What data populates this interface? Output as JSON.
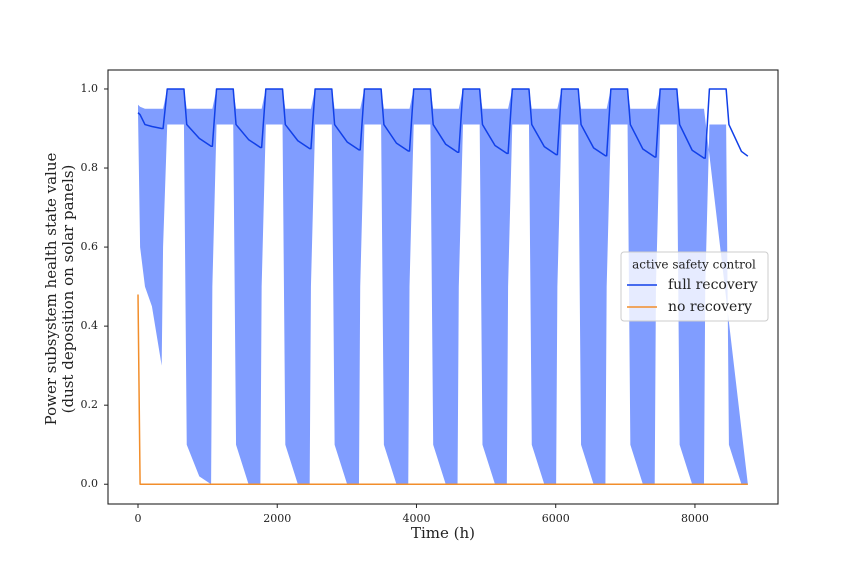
{
  "chart_data": {
    "type": "line",
    "xlabel": "Time (h)",
    "ylabel": [
      "Power subsystem health state value",
      "(dust deposition on solar panels)"
    ],
    "legend_title": "active safety control",
    "legend_loc": "center right",
    "grid": false,
    "xlim": [
      -431,
      9193
    ],
    "ylim": [
      -0.05,
      1.048
    ],
    "xticks": [
      0,
      2000,
      4000,
      6000,
      8000
    ],
    "yticks": [
      {
        "value": 0,
        "label": "0.0"
      },
      0.2,
      0.4,
      0.6,
      0.8,
      {
        "value": 1,
        "label": "1.0"
      }
    ],
    "x": [
      0,
      30,
      100,
      200,
      340,
      360,
      420,
      660,
      700,
      880,
      1050,
      1068,
      1128,
      1368,
      1408,
      1588,
      1758,
      1776,
      1836,
      2076,
      2116,
      2296,
      2466,
      2484,
      2544,
      2784,
      2824,
      3004,
      3174,
      3192,
      3252,
      3492,
      3532,
      3712,
      3882,
      3900,
      3960,
      4200,
      4240,
      4420,
      4590,
      4608,
      4668,
      4908,
      4948,
      5128,
      5298,
      5316,
      5376,
      5616,
      5656,
      5836,
      6006,
      6024,
      6084,
      6324,
      6364,
      6544,
      6714,
      6732,
      6792,
      7032,
      7072,
      7252,
      7422,
      7440,
      7500,
      7740,
      7780,
      7960,
      8130,
      8148,
      8208,
      8448,
      8488,
      8668,
      8760
    ],
    "series": [
      {
        "name": "full recovery",
        "color": "#1140e8",
        "band_color": "#809dff",
        "values": [
          0.94,
          0.935,
          0.91,
          0.905,
          0.9,
          0.9,
          1,
          1,
          0.91,
          0.875,
          0.855,
          0.855,
          1,
          1,
          0.91,
          0.872,
          0.852,
          0.852,
          1,
          1,
          0.91,
          0.869,
          0.849,
          0.849,
          1,
          1,
          0.91,
          0.866,
          0.846,
          0.846,
          1,
          1,
          0.91,
          0.863,
          0.843,
          0.843,
          1,
          1,
          0.91,
          0.86,
          0.84,
          0.84,
          1,
          1,
          0.91,
          0.857,
          0.837,
          0.837,
          1,
          1,
          0.91,
          0.854,
          0.834,
          0.834,
          1,
          1,
          0.91,
          0.851,
          0.831,
          0.831,
          1,
          1,
          0.91,
          0.848,
          0.828,
          0.828,
          1,
          1,
          0.91,
          0.845,
          0.825,
          0.825,
          1,
          1,
          0.91,
          0.842,
          0.83
        ],
        "upper": [
          0.96,
          0.955,
          0.95,
          0.95,
          0.95,
          0.95,
          1,
          1,
          0.95,
          0.95,
          0.95,
          0.95,
          1,
          1,
          0.95,
          0.95,
          0.95,
          0.95,
          1,
          1,
          0.95,
          0.95,
          0.95,
          0.95,
          1,
          1,
          0.95,
          0.95,
          0.95,
          0.95,
          1,
          1,
          0.95,
          0.95,
          0.95,
          0.95,
          1,
          1,
          0.95,
          0.95,
          0.95,
          0.95,
          1,
          1,
          0.95,
          0.95,
          0.95,
          0.95,
          1,
          1,
          0.95,
          0.95,
          0.95,
          0.95,
          1,
          1,
          0.95,
          0.95,
          0.95,
          0.95,
          1,
          1,
          0.95,
          0.95,
          0.95,
          0.95,
          1,
          1,
          0.95,
          0.95,
          0.95
        ],
        "lower": [
          0.94,
          0.6,
          0.5,
          0.45,
          0.3,
          0.6,
          0.91,
          0.91,
          0.1,
          0.02,
          0,
          0.5,
          0.91,
          0.91,
          0.1,
          0,
          0,
          0.5,
          0.91,
          0.91,
          0.1,
          0,
          0,
          0.5,
          0.91,
          0.91,
          0.1,
          0,
          0,
          0.5,
          0.91,
          0.91,
          0.1,
          0,
          0,
          0.5,
          0.91,
          0.91,
          0.1,
          0,
          0,
          0.5,
          0.91,
          0.91,
          0.1,
          0,
          0,
          0.5,
          0.91,
          0.91,
          0.1,
          0,
          0,
          0.5,
          0.91,
          0.91,
          0.1,
          0,
          0,
          0.5,
          0.91,
          0.91,
          0.1,
          0,
          0,
          0.5,
          0.91,
          0.91,
          0.1,
          0,
          0,
          0.5,
          0.91,
          0.91,
          0.1,
          0,
          0
        ]
      },
      {
        "name": "no recovery",
        "color": "#f28e2b",
        "values": [
          0.48,
          0,
          0,
          0,
          0,
          0,
          0,
          0,
          0,
          0,
          0,
          0,
          0,
          0,
          0,
          0,
          0,
          0,
          0,
          0,
          0,
          0,
          0,
          0,
          0,
          0,
          0,
          0,
          0,
          0,
          0,
          0,
          0,
          0,
          0,
          0,
          0,
          0,
          0,
          0,
          0,
          0,
          0,
          0,
          0,
          0,
          0,
          0,
          0,
          0,
          0,
          0,
          0,
          0,
          0,
          0,
          0,
          0,
          0,
          0,
          0,
          0,
          0,
          0,
          0,
          0,
          0,
          0,
          0,
          0,
          0,
          0,
          0,
          0,
          0,
          0,
          0
        ]
      }
    ]
  }
}
